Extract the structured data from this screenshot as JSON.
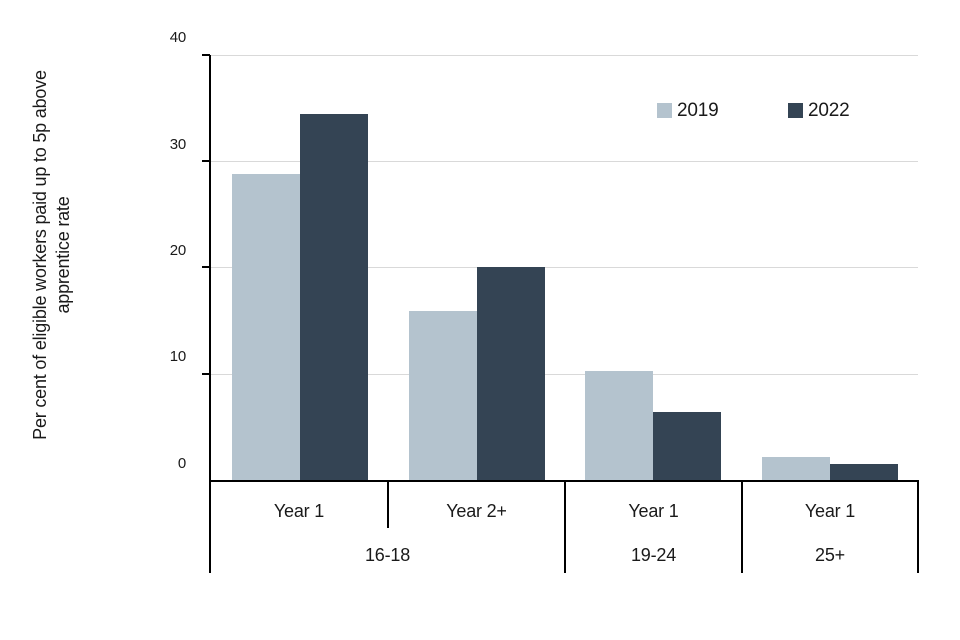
{
  "chart_data": {
    "type": "bar",
    "categories": [
      {
        "year_label": "Year 1",
        "age_label": "16-18"
      },
      {
        "year_label": "Year 2+",
        "age_label": "16-18"
      },
      {
        "year_label": "Year 1",
        "age_label": "19-24"
      },
      {
        "year_label": "Year 1",
        "age_label": "25+"
      }
    ],
    "age_groups": [
      {
        "label": "16-18",
        "span": 2
      },
      {
        "label": "19-24",
        "span": 1
      },
      {
        "label": "25+",
        "span": 1
      }
    ],
    "series": [
      {
        "name": "2019",
        "color": "#b4c3ce",
        "values": [
          28.8,
          16.0,
          10.3,
          2.3
        ]
      },
      {
        "name": "2022",
        "color": "#344454",
        "values": [
          34.5,
          20.1,
          6.5,
          1.6
        ]
      }
    ],
    "title": "",
    "xlabel": "",
    "ylabel": "Per cent of eligible workers paid up to 5p above apprentice rate",
    "ylabel_lines": [
      "Per cent of eligible workers paid up to 5p above",
      "apprentice rate"
    ],
    "ylim": [
      0,
      40
    ],
    "y_ticks": [
      0,
      10,
      20,
      30,
      40
    ],
    "y_tick_labels": [
      "40",
      "30",
      "20",
      "10",
      "0"
    ],
    "grid": true,
    "gridline_color": "#d9d9d9",
    "axis_color": "#000000",
    "legend_position": "top-right"
  }
}
